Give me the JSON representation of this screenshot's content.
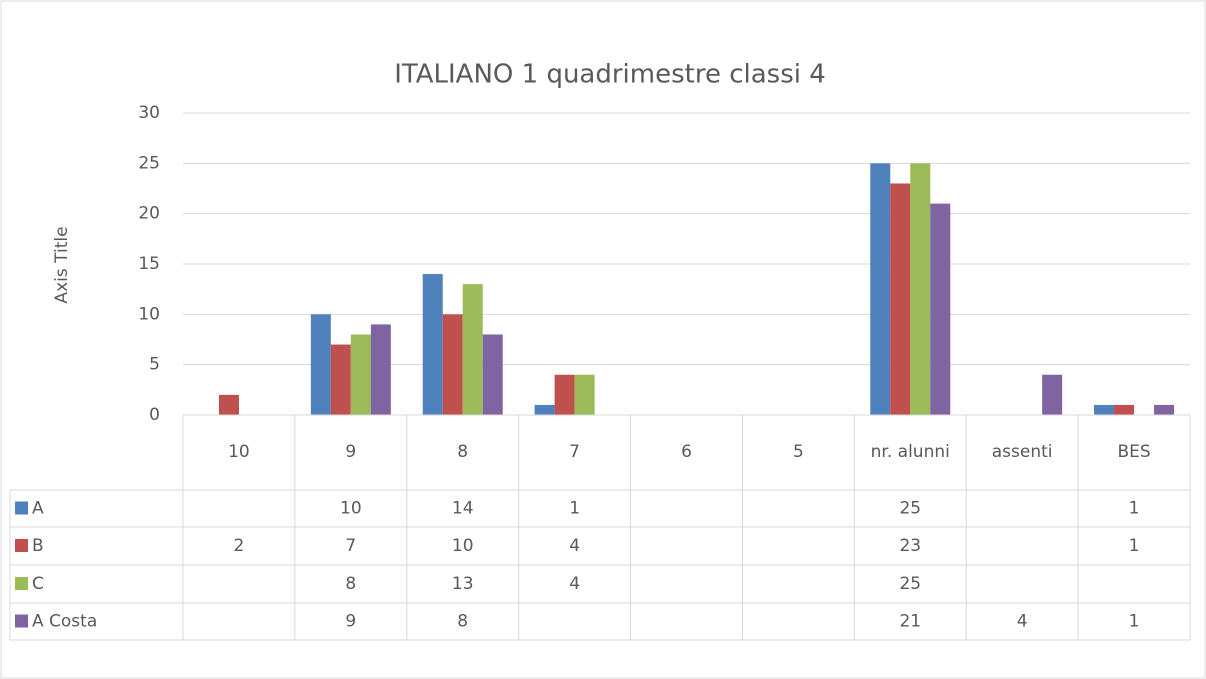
{
  "chart_data": {
    "type": "bar",
    "title": "ITALIANO 1 quadrimestre classi 4",
    "y_axis_label": "Axis Title",
    "categories": [
      "10",
      "9",
      "8",
      "7",
      "6",
      "5",
      "nr. alunni",
      "assenti",
      "BES"
    ],
    "series": [
      {
        "name": "A",
        "color": "#4f81bd",
        "values": [
          null,
          10,
          14,
          1,
          null,
          null,
          25,
          null,
          1
        ]
      },
      {
        "name": "B",
        "color": "#c0504d",
        "values": [
          2,
          7,
          10,
          4,
          null,
          null,
          23,
          null,
          1
        ]
      },
      {
        "name": "C",
        "color": "#9bbb59",
        "values": [
          null,
          8,
          13,
          4,
          null,
          null,
          25,
          null,
          null
        ]
      },
      {
        "name": "A Costa",
        "color": "#8064a2",
        "values": [
          null,
          9,
          8,
          null,
          null,
          null,
          21,
          4,
          1
        ]
      }
    ],
    "ylim": [
      0,
      30
    ],
    "yticks": [
      0,
      5,
      10,
      15,
      20,
      25,
      30
    ],
    "grid": true,
    "data_table": true
  }
}
